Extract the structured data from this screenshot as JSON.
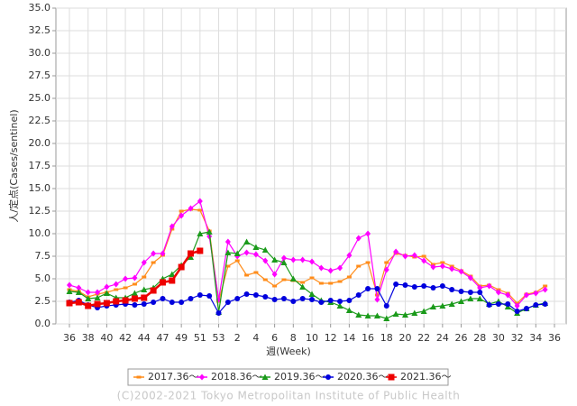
{
  "chart_data": {
    "type": "line",
    "x_label": "週(Week)",
    "y_label": "人/定点(Cases/sentinel)",
    "footer": "(C)2002-2021 Tokyo Metropolitan Institute of Public Health",
    "categories": [
      "36",
      null,
      "38",
      null,
      "40",
      null,
      "42",
      null,
      "44",
      null,
      "47",
      null,
      "49",
      null,
      "51",
      null,
      "53",
      null,
      "2",
      null,
      "4",
      null,
      "6",
      null,
      "8",
      null,
      "10",
      null,
      "12",
      null,
      "14",
      null,
      "16",
      null,
      "18",
      null,
      "20",
      null,
      "22",
      null,
      "24",
      null,
      "26",
      null,
      "28",
      null,
      "30",
      null,
      "32",
      null,
      "34",
      null,
      "36"
    ],
    "ylim": [
      0,
      35
    ],
    "yticks": [
      {
        "value": 0,
        "label": "0.0"
      },
      {
        "value": 2.5,
        "label": "2.5"
      },
      {
        "value": 5,
        "label": "5.0"
      },
      {
        "value": 7.5,
        "label": "7.5"
      },
      {
        "value": 10,
        "label": "10.0"
      },
      {
        "value": 12.5,
        "label": "12.5"
      },
      {
        "value": 15,
        "label": "15.0"
      },
      {
        "value": 17.5,
        "label": "17.5"
      },
      {
        "value": 20,
        "label": "20.0"
      },
      {
        "value": 22.5,
        "label": "22.5"
      },
      {
        "value": 25,
        "label": "25.0"
      },
      {
        "value": 27.5,
        "label": "27.5"
      },
      {
        "value": 30,
        "label": "30.0"
      },
      {
        "value": 32.5,
        "label": "32.5"
      },
      {
        "value": 35,
        "label": "35.0"
      }
    ],
    "grid": true,
    "series": [
      {
        "name": "2017.36～",
        "color": "#ff8c1a",
        "marker": "square",
        "values": [
          3.8,
          3.6,
          3.0,
          3.3,
          3.5,
          3.8,
          4.0,
          4.4,
          5.2,
          6.8,
          7.6,
          10.5,
          12.5,
          12.7,
          12.6,
          10.3,
          2.5,
          6.4,
          7.0,
          5.4,
          5.7,
          4.9,
          4.2,
          4.9,
          4.8,
          4.6,
          5.1,
          4.5,
          4.5,
          4.7,
          5.2,
          6.4,
          6.8,
          3.2,
          6.8,
          7.8,
          7.6,
          7.4,
          7.5,
          6.6,
          6.8,
          6.4,
          5.9,
          5.3,
          4.2,
          4.3,
          3.8,
          3.4,
          2.3,
          3.3,
          3.5,
          4.2,
          null
        ]
      },
      {
        "name": "2018.36～",
        "color": "#ff00ff",
        "marker": "diamond",
        "values": [
          4.3,
          4.0,
          3.5,
          3.5,
          4.1,
          4.4,
          5.0,
          5.1,
          6.8,
          7.8,
          7.8,
          10.8,
          12.0,
          12.8,
          13.6,
          9.7,
          2.7,
          9.1,
          7.5,
          7.9,
          7.7,
          7.0,
          5.5,
          7.3,
          7.1,
          7.1,
          6.9,
          6.2,
          5.9,
          6.2,
          7.6,
          9.5,
          10.0,
          2.7,
          6.0,
          8.0,
          7.5,
          7.6,
          7.0,
          6.3,
          6.4,
          6.1,
          5.8,
          5.1,
          4.0,
          4.2,
          3.5,
          3.2,
          2.0,
          3.2,
          3.4,
          3.8,
          null
        ]
      },
      {
        "name": "2019.36～",
        "color": "#1a9a1a",
        "marker": "triangle",
        "values": [
          3.6,
          3.5,
          2.8,
          2.9,
          3.4,
          2.9,
          2.9,
          3.4,
          3.8,
          4.0,
          5.0,
          5.5,
          6.5,
          7.4,
          10.0,
          10.2,
          1.3,
          7.9,
          7.8,
          9.1,
          8.5,
          8.2,
          7.1,
          6.8,
          5.0,
          4.1,
          3.3,
          2.6,
          2.4,
          2.0,
          1.5,
          1.0,
          0.9,
          0.9,
          0.6,
          1.1,
          1.0,
          1.2,
          1.4,
          1.9,
          2.0,
          2.2,
          2.5,
          2.8,
          2.8,
          2.2,
          2.5,
          1.9,
          1.2,
          1.7,
          2.1,
          2.3,
          null
        ]
      },
      {
        "name": "2020.36～",
        "color": "#0000dd",
        "marker": "circle",
        "values": [
          2.4,
          2.6,
          2.1,
          1.8,
          2.0,
          2.1,
          2.2,
          2.1,
          2.2,
          2.4,
          2.8,
          2.4,
          2.4,
          2.8,
          3.2,
          3.1,
          1.2,
          2.4,
          2.8,
          3.3,
          3.2,
          3.0,
          2.7,
          2.8,
          2.5,
          2.8,
          2.7,
          2.4,
          2.6,
          2.5,
          2.6,
          3.2,
          3.9,
          3.9,
          2.0,
          4.4,
          4.3,
          4.1,
          4.2,
          4.0,
          4.2,
          3.8,
          3.6,
          3.5,
          3.5,
          2.1,
          2.2,
          2.2,
          1.4,
          1.7,
          2.1,
          2.2,
          null
        ]
      },
      {
        "name": "2021.36～",
        "color": "#ee0000",
        "marker": "bigsquare",
        "values": [
          2.3,
          2.4,
          2.0,
          2.2,
          2.3,
          2.5,
          2.6,
          2.8,
          2.9,
          3.7,
          4.6,
          4.8,
          6.3,
          7.8,
          8.1,
          null,
          null,
          null,
          null,
          null,
          null,
          null,
          null,
          null,
          null,
          null,
          null,
          null,
          null,
          null,
          null,
          null,
          null,
          null,
          null,
          null,
          null,
          null,
          null,
          null,
          null,
          null,
          null,
          null,
          null,
          null,
          null,
          null,
          null,
          null,
          null,
          null,
          null
        ]
      }
    ]
  }
}
